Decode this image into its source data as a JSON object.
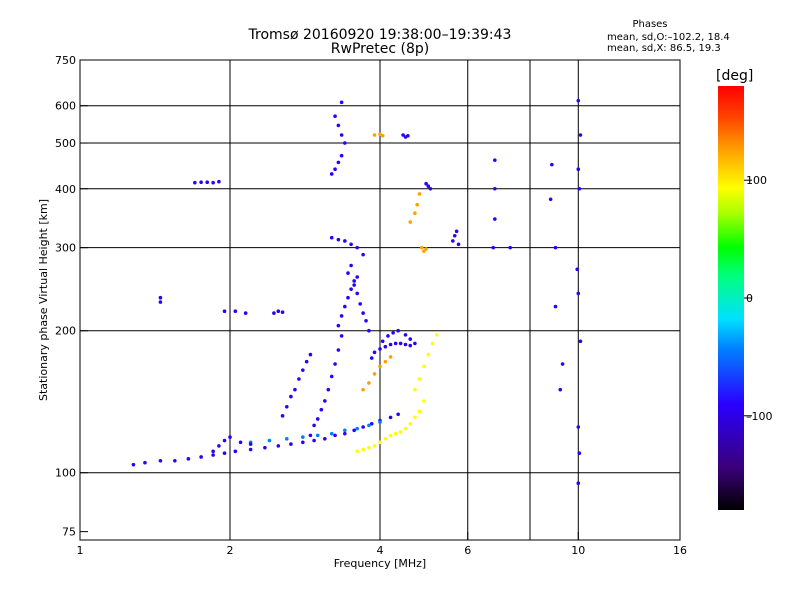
{
  "title": {
    "line1": "Tromsø 20160920 19:38:00–19:39:43",
    "line2": "RwPretec (8p)"
  },
  "stats": {
    "title": "Phases",
    "o_mode": "mean, sd,O:–102.2, 18.4",
    "x_mode": "mean, sd,X:  86.5, 19.3"
  },
  "colorbar": {
    "unit": "[deg]",
    "min": -180,
    "max": 180,
    "ticks": [
      {
        "value": 100,
        "label": "100"
      },
      {
        "value": 0,
        "label": "0"
      },
      {
        "value": -100,
        "label": "–100"
      }
    ],
    "colors": [
      "#000000",
      "#3a007a",
      "#2a00ff",
      "#0080ff",
      "#00e0ff",
      "#00ff80",
      "#00ff00",
      "#aaff00",
      "#ffff00",
      "#ffa000",
      "#ff4000",
      "#ff0000"
    ]
  },
  "colors": {
    "o_mode": "#3a00ff",
    "x_mode": "#e6e600"
  },
  "chart_data": {
    "type": "scatter",
    "xlabel": "Frequency [MHz]",
    "ylabel": "Stationary phase Virtual Height [km]",
    "xscale": "log",
    "yscale": "log",
    "xlim": [
      1,
      16
    ],
    "ylim": [
      72,
      750
    ],
    "xticks": [
      {
        "value": 1,
        "label": "1"
      },
      {
        "value": 2,
        "label": "2"
      },
      {
        "value": 4,
        "label": "4"
      },
      {
        "value": 6,
        "label": "6"
      },
      {
        "value": 10,
        "label": "10"
      },
      {
        "value": 16,
        "label": "16"
      }
    ],
    "yticks": [
      {
        "value": 75,
        "label": "75"
      },
      {
        "value": 100,
        "label": "100"
      },
      {
        "value": 200,
        "label": "200"
      },
      {
        "value": 300,
        "label": "300"
      },
      {
        "value": 400,
        "label": "400"
      },
      {
        "value": 500,
        "label": "500"
      },
      {
        "value": 600,
        "label": "600"
      },
      {
        "value": 750,
        "label": "750"
      }
    ],
    "xgrid": [
      2,
      4,
      6,
      8,
      10
    ],
    "ygrid": [
      100,
      200,
      300,
      400,
      500,
      600
    ],
    "series": [
      {
        "phase": -110,
        "points": [
          [
            1.28,
            104
          ],
          [
            1.35,
            105
          ],
          [
            1.45,
            106
          ],
          [
            1.55,
            106
          ],
          [
            1.65,
            107
          ],
          [
            1.75,
            108
          ],
          [
            1.85,
            109
          ],
          [
            1.95,
            110
          ],
          [
            2.05,
            111
          ],
          [
            2.2,
            112
          ],
          [
            2.35,
            113
          ],
          [
            2.5,
            114
          ],
          [
            2.65,
            115
          ],
          [
            2.8,
            116
          ],
          [
            2.95,
            117
          ],
          [
            3.1,
            118
          ],
          [
            3.25,
            120
          ],
          [
            3.4,
            121
          ],
          [
            3.55,
            123
          ],
          [
            3.7,
            125
          ],
          [
            3.85,
            127
          ],
          [
            4.0,
            129
          ],
          [
            4.2,
            131
          ],
          [
            4.35,
            133
          ]
        ]
      },
      {
        "phase": -95,
        "points": [
          [
            2.2,
            116
          ],
          [
            2.4,
            117
          ],
          [
            2.6,
            118
          ],
          [
            2.8,
            119
          ],
          [
            3.0,
            120
          ],
          [
            3.2,
            121
          ],
          [
            3.4,
            123
          ],
          [
            3.6,
            124
          ],
          [
            3.8,
            126
          ],
          [
            4.0,
            128
          ]
        ]
      },
      {
        "phase": -110,
        "points": [
          [
            1.85,
            111
          ],
          [
            1.9,
            114
          ],
          [
            1.95,
            117
          ],
          [
            2.0,
            119
          ],
          [
            2.1,
            116
          ],
          [
            2.2,
            115
          ]
        ]
      },
      {
        "phase": -100,
        "points": [
          [
            2.55,
            132
          ],
          [
            2.6,
            138
          ],
          [
            2.65,
            145
          ],
          [
            2.7,
            150
          ],
          [
            2.75,
            158
          ],
          [
            2.8,
            165
          ],
          [
            2.85,
            172
          ],
          [
            2.9,
            178
          ]
        ]
      },
      {
        "phase": -110,
        "points": [
          [
            2.9,
            120
          ],
          [
            2.95,
            126
          ],
          [
            3.0,
            130
          ],
          [
            3.05,
            136
          ],
          [
            3.1,
            142
          ],
          [
            3.15,
            150
          ],
          [
            3.2,
            160
          ],
          [
            3.25,
            170
          ],
          [
            3.3,
            182
          ],
          [
            3.35,
            195
          ]
        ]
      },
      {
        "phase": -110,
        "points": [
          [
            3.3,
            205
          ],
          [
            3.35,
            215
          ],
          [
            3.4,
            225
          ],
          [
            3.45,
            235
          ],
          [
            3.5,
            245
          ],
          [
            3.55,
            255
          ],
          [
            3.6,
            240
          ],
          [
            3.65,
            228
          ],
          [
            3.7,
            218
          ],
          [
            3.75,
            210
          ],
          [
            3.8,
            200
          ]
        ]
      },
      {
        "phase": -110,
        "points": [
          [
            3.2,
            315
          ],
          [
            3.3,
            312
          ],
          [
            3.4,
            310
          ],
          [
            3.5,
            305
          ],
          [
            3.6,
            300
          ],
          [
            3.7,
            290
          ],
          [
            3.5,
            275
          ],
          [
            3.45,
            265
          ],
          [
            3.6,
            260
          ],
          [
            3.55,
            250
          ]
        ]
      },
      {
        "phase": -110,
        "points": [
          [
            3.2,
            430
          ],
          [
            3.25,
            440
          ],
          [
            3.3,
            455
          ],
          [
            3.35,
            470
          ],
          [
            3.4,
            500
          ],
          [
            3.35,
            520
          ],
          [
            3.3,
            545
          ],
          [
            3.25,
            570
          ],
          [
            3.35,
            610
          ]
        ]
      },
      {
        "phase": -110,
        "points": [
          [
            3.85,
            175
          ],
          [
            3.9,
            180
          ],
          [
            4.0,
            183
          ],
          [
            4.1,
            185
          ],
          [
            4.2,
            187
          ],
          [
            4.3,
            188
          ],
          [
            4.4,
            188
          ],
          [
            4.5,
            187
          ],
          [
            4.6,
            186
          ]
        ]
      },
      {
        "phase": -105,
        "points": [
          [
            4.05,
            190
          ],
          [
            4.15,
            195
          ],
          [
            4.25,
            198
          ],
          [
            4.35,
            200
          ],
          [
            4.5,
            196
          ],
          [
            4.6,
            192
          ],
          [
            4.7,
            188
          ]
        ]
      },
      {
        "phase": -115,
        "points": [
          [
            1.7,
            412
          ],
          [
            1.75,
            413
          ],
          [
            1.8,
            413
          ],
          [
            1.85,
            412
          ],
          [
            1.9,
            414
          ]
        ]
      },
      {
        "phase": -110,
        "points": [
          [
            1.95,
            220
          ],
          [
            2.05,
            220
          ],
          [
            2.15,
            218
          ]
        ]
      },
      {
        "phase": -110,
        "points": [
          [
            2.45,
            218
          ],
          [
            2.5,
            220
          ],
          [
            2.55,
            219
          ]
        ]
      },
      {
        "phase": -115,
        "points": [
          [
            4.45,
            520
          ],
          [
            4.5,
            515
          ],
          [
            4.55,
            518
          ]
        ]
      },
      {
        "phase": -110,
        "points": [
          [
            4.95,
            410
          ],
          [
            5.0,
            405
          ],
          [
            5.05,
            400
          ]
        ]
      },
      {
        "phase": -115,
        "points": [
          [
            5.6,
            310
          ],
          [
            5.65,
            318
          ],
          [
            5.7,
            325
          ],
          [
            5.75,
            305
          ]
        ]
      },
      {
        "phase": 95,
        "points": [
          [
            3.6,
            111
          ],
          [
            3.7,
            112
          ],
          [
            3.8,
            113
          ],
          [
            3.9,
            114
          ],
          [
            4.0,
            116
          ],
          [
            4.1,
            118
          ],
          [
            4.2,
            120
          ],
          [
            4.3,
            121
          ],
          [
            4.4,
            122
          ],
          [
            4.5,
            124
          ],
          [
            4.6,
            127
          ],
          [
            4.7,
            131
          ],
          [
            4.8,
            135
          ],
          [
            4.9,
            142
          ]
        ]
      },
      {
        "phase": 100,
        "points": [
          [
            3.7,
            150
          ],
          [
            3.8,
            155
          ],
          [
            3.9,
            162
          ],
          [
            4.0,
            168
          ],
          [
            4.1,
            172
          ],
          [
            4.2,
            176
          ]
        ]
      },
      {
        "phase": 85,
        "points": [
          [
            4.7,
            150
          ],
          [
            4.8,
            158
          ],
          [
            4.9,
            168
          ],
          [
            5.0,
            178
          ],
          [
            5.1,
            188
          ],
          [
            5.2,
            196
          ]
        ]
      },
      {
        "phase": 100,
        "points": [
          [
            4.6,
            340
          ],
          [
            4.7,
            355
          ],
          [
            4.75,
            370
          ],
          [
            4.8,
            390
          ],
          [
            4.85,
            300
          ],
          [
            4.9,
            295
          ],
          [
            4.95,
            298
          ]
        ]
      },
      {
        "phase": 100,
        "points": [
          [
            3.9,
            520
          ],
          [
            4.0,
            522
          ],
          [
            4.05,
            518
          ]
        ]
      },
      {
        "phase": -110,
        "points": [
          [
            1.45,
            230
          ],
          [
            1.45,
            235
          ]
        ]
      },
      {
        "phase": -110,
        "points": [
          [
            6.8,
            460
          ],
          [
            6.8,
            400
          ],
          [
            6.8,
            345
          ],
          [
            6.75,
            300
          ],
          [
            7.3,
            300
          ]
        ]
      },
      {
        "phase": -110,
        "points": [
          [
            8.85,
            450
          ],
          [
            8.8,
            380
          ],
          [
            9.0,
            300
          ],
          [
            9.0,
            225
          ],
          [
            9.2,
            150
          ],
          [
            9.3,
            170
          ]
        ]
      },
      {
        "phase": -110,
        "points": [
          [
            10.0,
            615
          ],
          [
            10.1,
            520
          ],
          [
            10.0,
            440
          ],
          [
            10.05,
            400
          ],
          [
            9.95,
            270
          ],
          [
            10.0,
            240
          ],
          [
            10.1,
            190
          ],
          [
            10.0,
            125
          ],
          [
            10.05,
            110
          ],
          [
            10.0,
            95
          ]
        ]
      }
    ]
  }
}
